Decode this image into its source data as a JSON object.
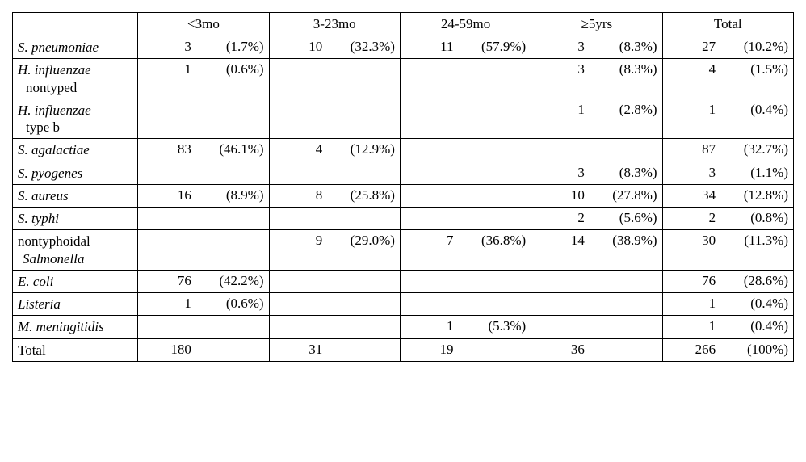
{
  "columns": [
    {
      "key": "c0",
      "label": "<3mo"
    },
    {
      "key": "c1",
      "label": "3-23mo"
    },
    {
      "key": "c2",
      "label": "24-59mo"
    },
    {
      "key": "c3",
      "label": "≥5yrs"
    },
    {
      "key": "c4",
      "label": "Total"
    }
  ],
  "rows": [
    {
      "name_italic": "S. pneumoniae",
      "sub": null,
      "sub_italic": false,
      "cells": [
        {
          "n": "3",
          "p": "(1.7%)"
        },
        {
          "n": "10",
          "p": "(32.3%)"
        },
        {
          "n": "11",
          "p": "(57.9%)"
        },
        {
          "n": "3",
          "p": "(8.3%)"
        },
        {
          "n": "27",
          "p": "(10.2%)"
        }
      ]
    },
    {
      "name_italic": "H. influenzae",
      "sub": "nontyped",
      "sub_italic": false,
      "cells": [
        {
          "n": "1",
          "p": "(0.6%)"
        },
        {
          "n": "",
          "p": ""
        },
        {
          "n": "",
          "p": ""
        },
        {
          "n": "3",
          "p": "(8.3%)"
        },
        {
          "n": "4",
          "p": "(1.5%)"
        }
      ]
    },
    {
      "name_italic": "H. influenzae",
      "sub": "type b",
      "sub_italic": false,
      "cells": [
        {
          "n": "",
          "p": ""
        },
        {
          "n": "",
          "p": ""
        },
        {
          "n": "",
          "p": ""
        },
        {
          "n": "1",
          "p": "(2.8%)"
        },
        {
          "n": "1",
          "p": "(0.4%)"
        }
      ]
    },
    {
      "name_italic": "S. agalactiae",
      "sub": null,
      "sub_italic": false,
      "cells": [
        {
          "n": "83",
          "p": "(46.1%)"
        },
        {
          "n": "4",
          "p": "(12.9%)"
        },
        {
          "n": "",
          "p": ""
        },
        {
          "n": "",
          "p": ""
        },
        {
          "n": "87",
          "p": "(32.7%)"
        }
      ]
    },
    {
      "name_italic": "S. pyogenes",
      "sub": null,
      "sub_italic": false,
      "cells": [
        {
          "n": "",
          "p": ""
        },
        {
          "n": "",
          "p": ""
        },
        {
          "n": "",
          "p": ""
        },
        {
          "n": "3",
          "p": "(8.3%)"
        },
        {
          "n": "3",
          "p": "(1.1%)"
        }
      ]
    },
    {
      "name_italic": "S. aureus",
      "sub": null,
      "sub_italic": false,
      "cells": [
        {
          "n": "16",
          "p": "(8.9%)"
        },
        {
          "n": "8",
          "p": "(25.8%)"
        },
        {
          "n": "",
          "p": ""
        },
        {
          "n": "10",
          "p": "(27.8%)"
        },
        {
          "n": "34",
          "p": "(12.8%)"
        }
      ]
    },
    {
      "name_italic": "S. typhi",
      "sub": null,
      "sub_italic": false,
      "cells": [
        {
          "n": "",
          "p": ""
        },
        {
          "n": "",
          "p": ""
        },
        {
          "n": "",
          "p": ""
        },
        {
          "n": "2",
          "p": "(5.6%)"
        },
        {
          "n": "2",
          "p": "(0.8%)"
        }
      ]
    },
    {
      "name_italic": null,
      "name_plain": "nontyphoidal",
      "sub": "Salmonella",
      "sub_italic": true,
      "cells": [
        {
          "n": "",
          "p": ""
        },
        {
          "n": "9",
          "p": "(29.0%)"
        },
        {
          "n": "7",
          "p": "(36.8%)"
        },
        {
          "n": "14",
          "p": "(38.9%)"
        },
        {
          "n": "30",
          "p": "(11.3%)"
        }
      ]
    },
    {
      "name_italic": "E. coli",
      "sub": null,
      "sub_italic": false,
      "cells": [
        {
          "n": "76",
          "p": "(42.2%)"
        },
        {
          "n": "",
          "p": ""
        },
        {
          "n": "",
          "p": ""
        },
        {
          "n": "",
          "p": ""
        },
        {
          "n": "76",
          "p": "(28.6%)"
        }
      ]
    },
    {
      "name_italic": "Listeria",
      "sub": null,
      "sub_italic": false,
      "cells": [
        {
          "n": "1",
          "p": "(0.6%)"
        },
        {
          "n": "",
          "p": ""
        },
        {
          "n": "",
          "p": ""
        },
        {
          "n": "",
          "p": ""
        },
        {
          "n": "1",
          "p": "(0.4%)"
        }
      ]
    },
    {
      "name_italic": "M. meningitidis",
      "sub": null,
      "sub_italic": false,
      "cells": [
        {
          "n": "",
          "p": ""
        },
        {
          "n": "",
          "p": ""
        },
        {
          "n": "1",
          "p": "(5.3%)"
        },
        {
          "n": "",
          "p": ""
        },
        {
          "n": "1",
          "p": "(0.4%)"
        }
      ]
    },
    {
      "name_italic": null,
      "name_plain": "Total",
      "sub": null,
      "sub_italic": false,
      "cells": [
        {
          "n": "180",
          "p": ""
        },
        {
          "n": "31",
          "p": ""
        },
        {
          "n": "19",
          "p": ""
        },
        {
          "n": "36",
          "p": ""
        },
        {
          "n": "266",
          "p": "(100%)"
        }
      ]
    }
  ],
  "style": {
    "border_color": "#000000",
    "background_color": "#ffffff",
    "font_family": "Century Schoolbook / Times-like serif",
    "font_size_pt": 12,
    "italic_species": true
  }
}
